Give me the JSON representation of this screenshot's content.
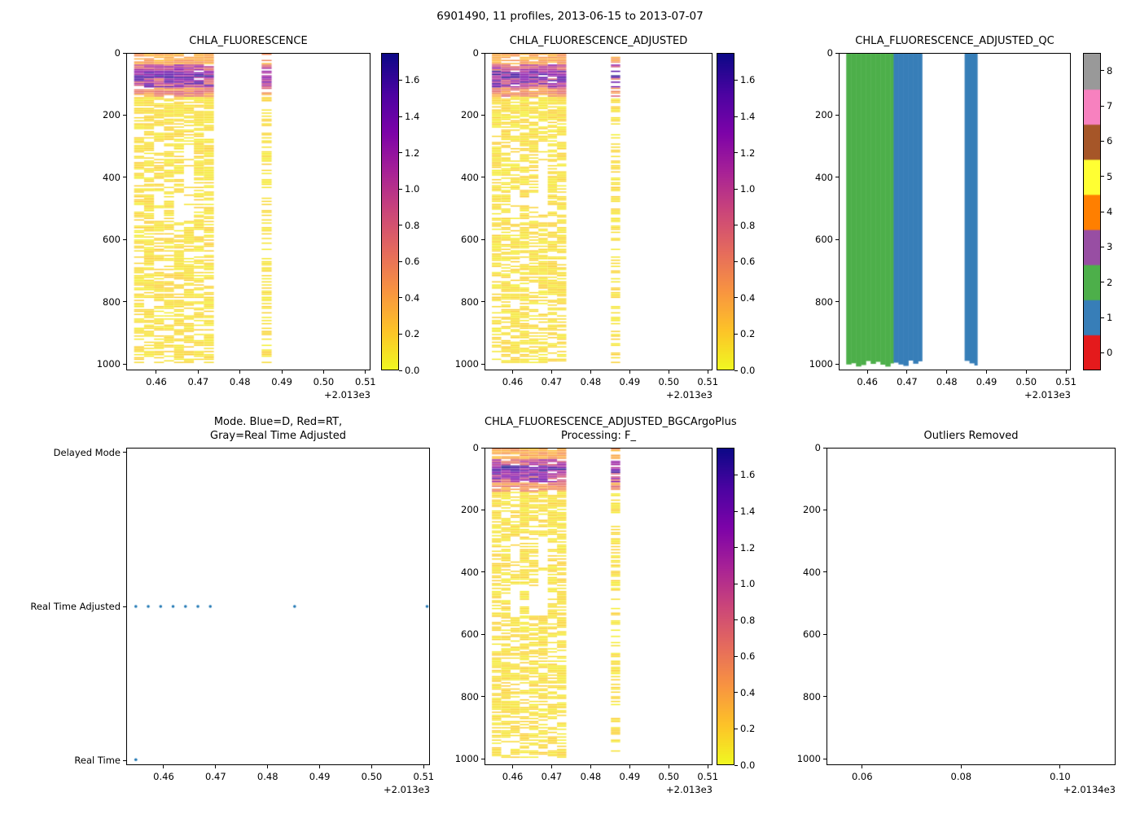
{
  "figure": {
    "title": "6901490, 11 profiles, 2013-06-15 to 2013-07-07"
  },
  "colors": {
    "marker_blue": "#1f77b4",
    "axis_black": "#000000",
    "qc_palette": [
      "#e41a1c",
      "#377eb8",
      "#4daf4a",
      "#984ea3",
      "#ff7f00",
      "#ffff33",
      "#a65628",
      "#f781bf",
      "#999999"
    ]
  },
  "chart_data": [
    {
      "type": "heatmap",
      "title": "CHLA_FLUORESCENCE",
      "colormap": "plasma_r",
      "xlim": [
        0.4528,
        0.5112
      ],
      "ylim": [
        0,
        1020
      ],
      "xticks": [
        0.46,
        0.47,
        0.48,
        0.49,
        0.5,
        0.51
      ],
      "xtick_labels": [
        "0.46",
        "0.47",
        "0.48",
        "0.49",
        "0.50",
        "0.51"
      ],
      "x_offset_label": "+2.013e3",
      "yticks": [
        0,
        200,
        400,
        600,
        800,
        1000
      ],
      "colorbar": {
        "vmin": 0.0,
        "vmax": 1.75,
        "ticks": [
          0.0,
          0.2,
          0.4,
          0.6,
          0.8,
          1.0,
          1.2,
          1.4,
          1.6
        ],
        "tick_labels": [
          "0.0",
          "0.2",
          "0.4",
          "0.6",
          "0.8",
          "1.0",
          "1.2",
          "1.4",
          "1.6"
        ]
      },
      "profile_width": 0.0024,
      "profiles": [
        {
          "x": 0.4545
        },
        {
          "x": 0.4569
        },
        {
          "x": 0.4593
        },
        {
          "x": 0.4617
        },
        {
          "x": 0.4641
        },
        {
          "x": 0.4665
        },
        {
          "x": 0.4689
        },
        {
          "x": 0.4713
        },
        {
          "x": 0.4852,
          "sparse": true
        }
      ],
      "value_profile": [
        {
          "depth_range": [
            0,
            35
          ],
          "chla_range": [
            0.25,
            0.55
          ]
        },
        {
          "depth_range": [
            35,
            140
          ],
          "chla_range": [
            0.6,
            1.75
          ]
        },
        {
          "depth_range": [
            140,
            1000
          ],
          "chla_range": [
            0.04,
            0.2
          ]
        }
      ]
    },
    {
      "type": "heatmap",
      "title": "CHLA_FLUORESCENCE_ADJUSTED",
      "colormap": "plasma_r",
      "xlim": [
        0.4528,
        0.5112
      ],
      "ylim": [
        0,
        1020
      ],
      "xticks": [
        0.46,
        0.47,
        0.48,
        0.49,
        0.5,
        0.51
      ],
      "xtick_labels": [
        "0.46",
        "0.47",
        "0.48",
        "0.49",
        "0.50",
        "0.51"
      ],
      "x_offset_label": "+2.013e3",
      "yticks": [
        0,
        200,
        400,
        600,
        800,
        1000
      ],
      "colorbar": {
        "vmin": 0.0,
        "vmax": 1.75,
        "ticks": [
          0.0,
          0.2,
          0.4,
          0.6,
          0.8,
          1.0,
          1.2,
          1.4,
          1.6
        ],
        "tick_labels": [
          "0.0",
          "0.2",
          "0.4",
          "0.6",
          "0.8",
          "1.0",
          "1.2",
          "1.4",
          "1.6"
        ]
      },
      "profile_width": 0.0024,
      "profiles": [
        {
          "x": 0.4545
        },
        {
          "x": 0.4569
        },
        {
          "x": 0.4593
        },
        {
          "x": 0.4617
        },
        {
          "x": 0.4641
        },
        {
          "x": 0.4665
        },
        {
          "x": 0.4689
        },
        {
          "x": 0.4713
        },
        {
          "x": 0.4852,
          "sparse": true
        }
      ],
      "value_profile": [
        {
          "depth_range": [
            0,
            35
          ],
          "chla_range": [
            0.25,
            0.55
          ]
        },
        {
          "depth_range": [
            35,
            140
          ],
          "chla_range": [
            0.6,
            1.75
          ]
        },
        {
          "depth_range": [
            140,
            1000
          ],
          "chla_range": [
            0.04,
            0.2
          ]
        }
      ]
    },
    {
      "type": "qc_heatmap",
      "title": "CHLA_FLUORESCENCE_ADJUSTED_QC",
      "xlim": [
        0.4528,
        0.5112
      ],
      "ylim": [
        0,
        1020
      ],
      "xticks": [
        0.46,
        0.47,
        0.48,
        0.49,
        0.5,
        0.51
      ],
      "xtick_labels": [
        "0.46",
        "0.47",
        "0.48",
        "0.49",
        "0.50",
        "0.51"
      ],
      "x_offset_label": "+2.013e3",
      "yticks": [
        0,
        200,
        400,
        600,
        800,
        1000
      ],
      "colorbar": {
        "discrete": true,
        "ticks": [
          0,
          1,
          2,
          3,
          4,
          5,
          6,
          7,
          8
        ],
        "tick_labels": [
          "0",
          "1",
          "2",
          "3",
          "4",
          "5",
          "6",
          "7",
          "8"
        ]
      },
      "segments": [
        {
          "x0": 0.4545,
          "x1": 0.4665,
          "flag": 2
        },
        {
          "x0": 0.4665,
          "x1": 0.4737,
          "flag": 1
        },
        {
          "x0": 0.4845,
          "x1": 0.4877,
          "flag": 1
        }
      ]
    },
    {
      "type": "scatter_mode",
      "title_lines": [
        "Mode. Blue=D, Red=RT,",
        "Gray=Real Time Adjusted"
      ],
      "xlim": [
        0.4528,
        0.5112
      ],
      "xticks": [
        0.46,
        0.47,
        0.48,
        0.49,
        0.5,
        0.51
      ],
      "xtick_labels": [
        "0.46",
        "0.47",
        "0.48",
        "0.49",
        "0.50",
        "0.51"
      ],
      "x_offset_label": "+2.013e3",
      "categories": [
        "Delayed Mode",
        "Real Time Adjusted",
        "Real Time"
      ],
      "marker_color": "#1f77b4",
      "points": [
        {
          "x": 0.4545,
          "mode": "Real Time Adjusted"
        },
        {
          "x": 0.4569,
          "mode": "Real Time Adjusted"
        },
        {
          "x": 0.4593,
          "mode": "Real Time Adjusted"
        },
        {
          "x": 0.4617,
          "mode": "Real Time Adjusted"
        },
        {
          "x": 0.4641,
          "mode": "Real Time Adjusted"
        },
        {
          "x": 0.4665,
          "mode": "Real Time Adjusted"
        },
        {
          "x": 0.4689,
          "mode": "Real Time Adjusted"
        },
        {
          "x": 0.4852,
          "mode": "Real Time Adjusted"
        },
        {
          "x": 0.5108,
          "mode": "Real Time Adjusted"
        },
        {
          "x": 0.4545,
          "mode": "Real Time"
        }
      ]
    },
    {
      "type": "heatmap",
      "title_lines": [
        "CHLA_FLUORESCENCE_ADJUSTED_BGCArgoPlus",
        "Processing: F_"
      ],
      "colormap": "plasma_r",
      "xlim": [
        0.4528,
        0.5112
      ],
      "ylim": [
        0,
        1020
      ],
      "xticks": [
        0.46,
        0.47,
        0.48,
        0.49,
        0.5,
        0.51
      ],
      "xtick_labels": [
        "0.46",
        "0.47",
        "0.48",
        "0.49",
        "0.50",
        "0.51"
      ],
      "x_offset_label": "+2.013e3",
      "yticks": [
        0,
        200,
        400,
        600,
        800,
        1000
      ],
      "colorbar": {
        "vmin": 0.0,
        "vmax": 1.75,
        "ticks": [
          0.0,
          0.2,
          0.4,
          0.6,
          0.8,
          1.0,
          1.2,
          1.4,
          1.6
        ],
        "tick_labels": [
          "0.0",
          "0.2",
          "0.4",
          "0.6",
          "0.8",
          "1.0",
          "1.2",
          "1.4",
          "1.6"
        ]
      },
      "profile_width": 0.0024,
      "profiles": [
        {
          "x": 0.4545
        },
        {
          "x": 0.4569
        },
        {
          "x": 0.4593
        },
        {
          "x": 0.4617
        },
        {
          "x": 0.4641
        },
        {
          "x": 0.4665
        },
        {
          "x": 0.4689
        },
        {
          "x": 0.4713
        },
        {
          "x": 0.4852,
          "sparse": true
        }
      ],
      "value_profile": [
        {
          "depth_range": [
            0,
            35
          ],
          "chla_range": [
            0.25,
            0.55
          ]
        },
        {
          "depth_range": [
            35,
            140
          ],
          "chla_range": [
            0.6,
            1.75
          ]
        },
        {
          "depth_range": [
            140,
            1000
          ],
          "chla_range": [
            0.04,
            0.2
          ]
        }
      ]
    },
    {
      "type": "empty",
      "title": "Outliers Removed",
      "xlim": [
        0.0528,
        0.1112
      ],
      "ylim": [
        0,
        1020
      ],
      "xticks": [
        0.06,
        0.08,
        0.1
      ],
      "xtick_labels": [
        "0.06",
        "0.08",
        "0.10"
      ],
      "x_offset_label": "+2.0134e3",
      "yticks": [
        0,
        200,
        400,
        600,
        800,
        1000
      ]
    }
  ]
}
